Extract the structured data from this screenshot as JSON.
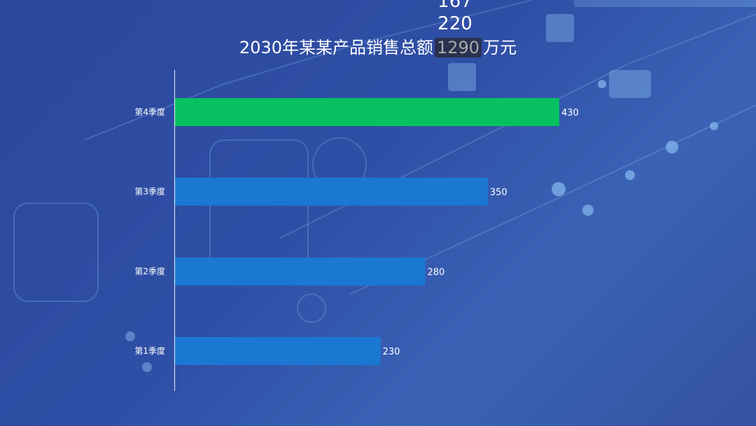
{
  "rolling_numbers": [
    "167",
    "220"
  ],
  "title": {
    "prefix": "2030年某某产品销售总额",
    "total": "1290",
    "unit": "万元"
  },
  "chart_data": {
    "type": "bar",
    "orientation": "horizontal",
    "categories": [
      "第1季度",
      "第2季度",
      "第3季度",
      "第4季度"
    ],
    "values": [
      230,
      280,
      350,
      430
    ],
    "colors": [
      "#1a78d2",
      "#1a78d2",
      "#1a78d2",
      "#07c160"
    ],
    "xlim": [
      0,
      430
    ],
    "grid": false,
    "data_labels": true
  }
}
